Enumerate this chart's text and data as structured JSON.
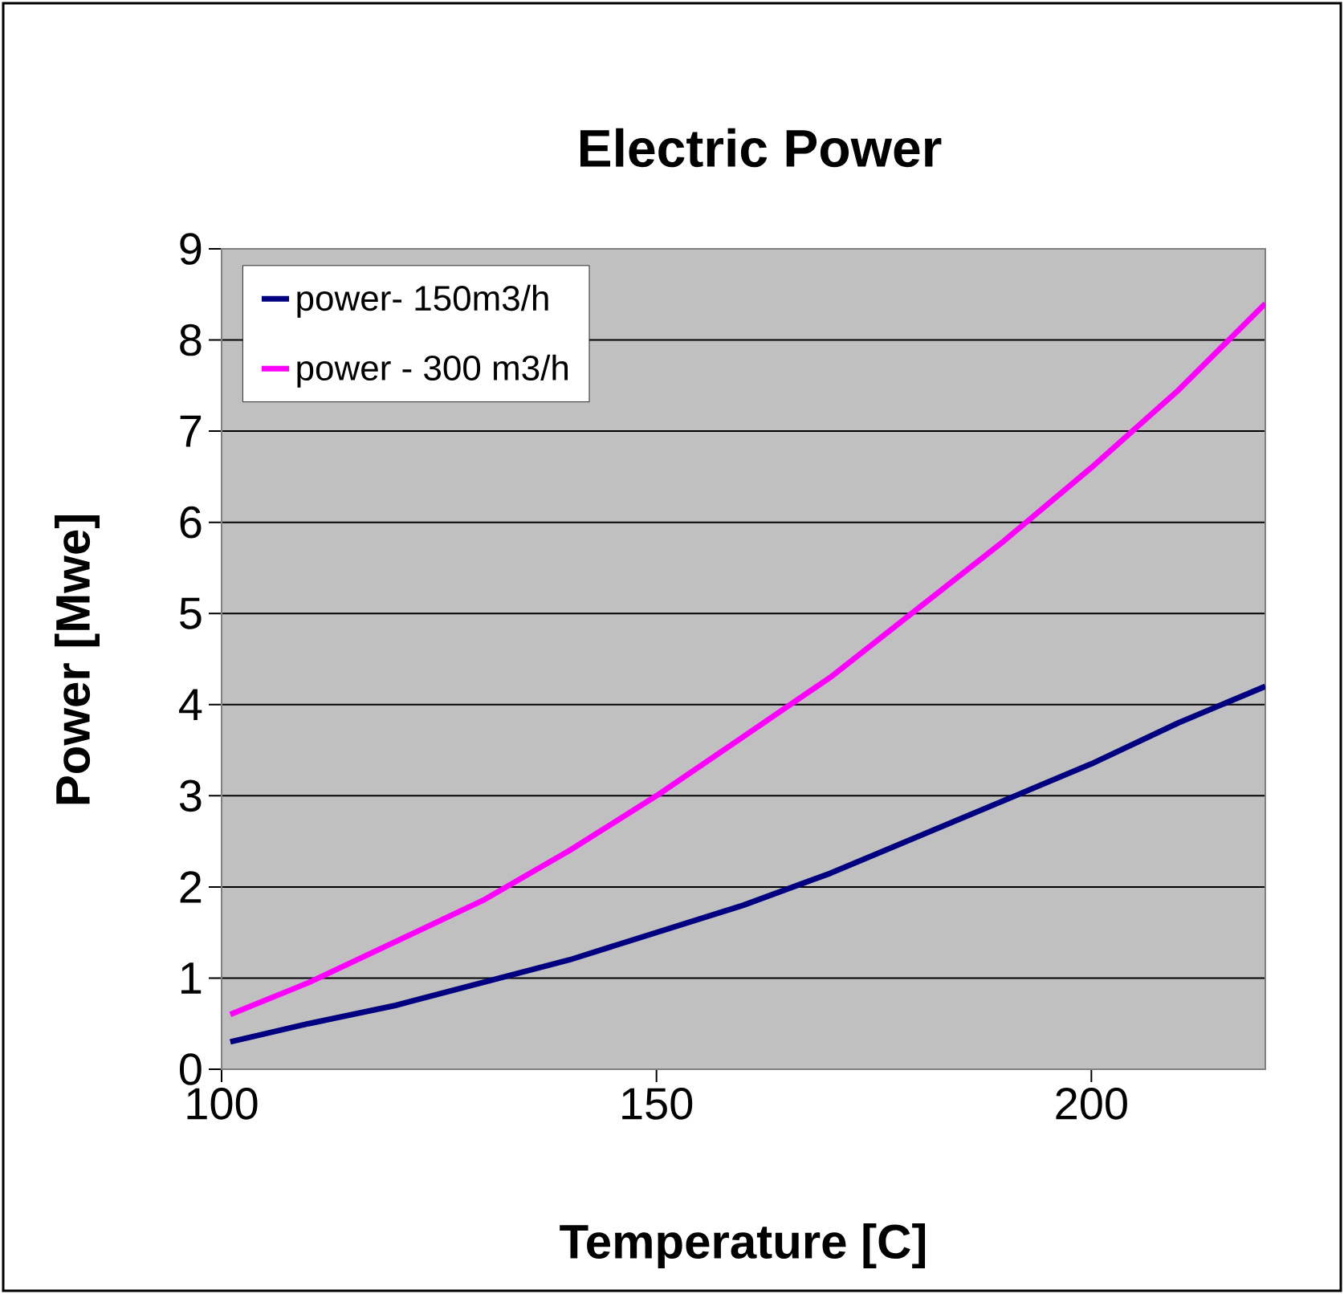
{
  "chart_data": {
    "type": "line",
    "title": "Electric Power",
    "xlabel": "Temperature [C]",
    "ylabel": "Power [Mwe]",
    "xlim": [
      100,
      220
    ],
    "xticks": [
      100,
      150,
      200
    ],
    "ylim": [
      0,
      9
    ],
    "yticks": [
      0,
      1,
      2,
      3,
      4,
      5,
      6,
      7,
      8,
      9
    ],
    "grid": "y",
    "legend": "top left",
    "marker": "none",
    "line_style": "solid",
    "series": [
      {
        "name": "power- 150m3/h",
        "color": "#000080",
        "x": [
          101,
          110,
          120,
          130,
          140,
          150,
          160,
          170,
          180,
          190,
          200,
          210,
          220
        ],
        "values": [
          0.3,
          0.5,
          0.7,
          0.95,
          1.2,
          1.5,
          1.8,
          2.15,
          2.55,
          2.95,
          3.35,
          3.8,
          4.2
        ]
      },
      {
        "name": "power - 300 m3/h",
        "color": "#ff00ff",
        "x": [
          101,
          110,
          120,
          130,
          140,
          150,
          160,
          170,
          180,
          190,
          200,
          210,
          220
        ],
        "values": [
          0.6,
          0.95,
          1.4,
          1.85,
          2.4,
          3.0,
          3.65,
          4.3,
          5.05,
          5.8,
          6.6,
          7.45,
          8.4
        ]
      }
    ]
  }
}
